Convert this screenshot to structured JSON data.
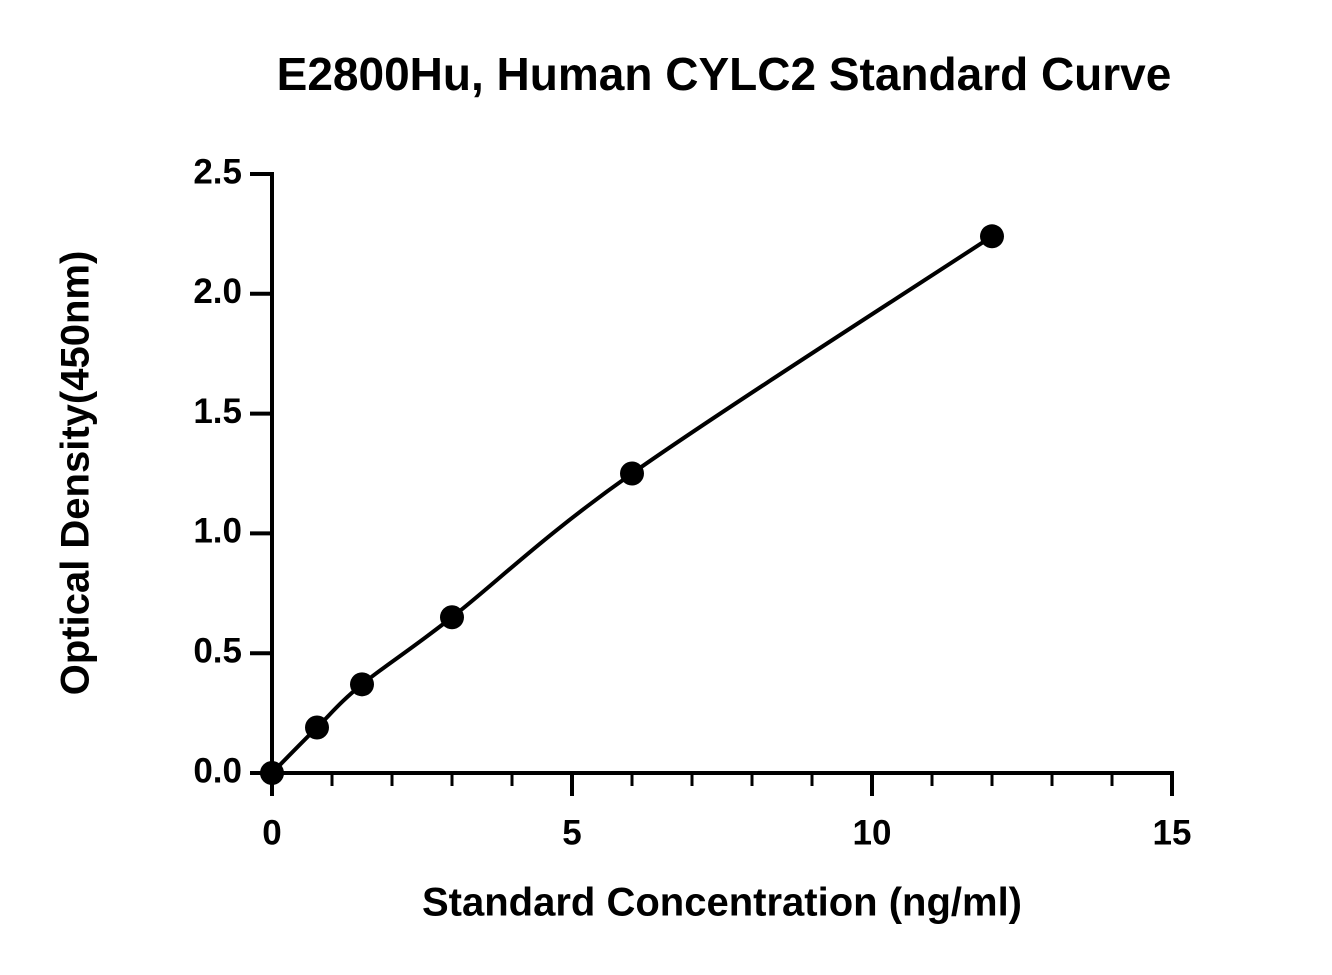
{
  "chart_data": {
    "type": "scatter",
    "title": "E2800Hu, Human CYLC2 Standard Curve",
    "x_label": "Standard Concentration (ng/ml)",
    "y_label": "Optical Density(450nm)",
    "x": [
      0,
      0.75,
      1.5,
      3,
      6,
      12
    ],
    "values": [
      0.0,
      0.19,
      0.37,
      0.65,
      1.25,
      2.24
    ],
    "color": "#000000",
    "connect": "smooth",
    "xlim": [
      0,
      15
    ],
    "xticks": [
      0,
      5,
      10,
      15
    ],
    "xminorticks": [
      1,
      2,
      3,
      4,
      6,
      7,
      8,
      9,
      11,
      12,
      13,
      14
    ],
    "ylim": [
      0,
      2.5
    ],
    "yticks": [
      {
        "value": 0,
        "label": "0.0"
      },
      0.5,
      {
        "value": 1,
        "label": "1.0"
      },
      1.5,
      {
        "value": 2,
        "label": "2.0"
      },
      2.5
    ]
  }
}
